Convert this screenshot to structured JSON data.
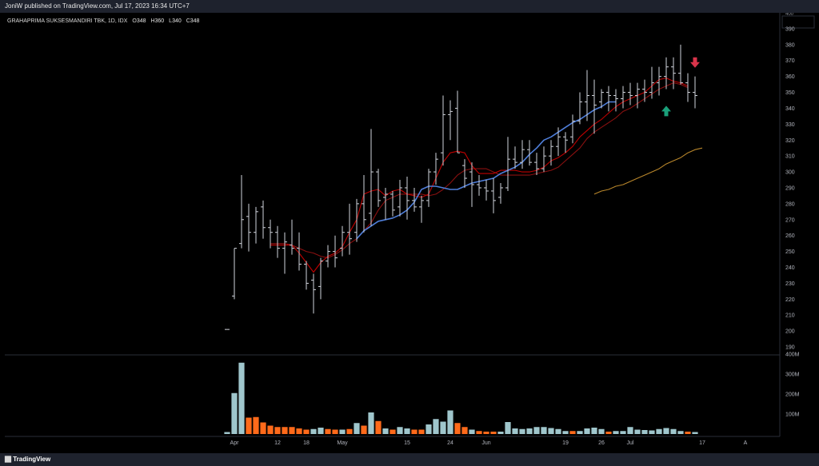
{
  "header": {
    "published": "JoniW published on TradingView.com, Jul 17, 2023 16:34 UTC+7",
    "legend": "GRAHAPRIMA SUKSESMANDIRI TBK, 1D, IDX",
    "o_label": "O",
    "o_value": "348",
    "h_label": "H",
    "h_value": "360",
    "l_label": "L",
    "l_value": "340",
    "c_label": "C",
    "c_value": "348"
  },
  "footer": {
    "brand": "TradingView"
  },
  "colors": {
    "background": "#000000",
    "bar": "#d1d4dc",
    "ma_fast": "#c00000",
    "ma_mid": "#8b1010",
    "ma_blue": "#4f7ed9",
    "ma_slow": "#b8862b",
    "vol_up": "#9fc6cc",
    "vol_down": "#ff6a1a",
    "arrow_up": "#1aa07a",
    "arrow_down": "#d9344a"
  },
  "chart_data": {
    "type": "ohlc",
    "price_axis": {
      "ticks": [
        190,
        200,
        210,
        220,
        230,
        240,
        250,
        260,
        270,
        280,
        290,
        300,
        310,
        320,
        330,
        340,
        350,
        360,
        370,
        380,
        390
      ],
      "top_label": "400",
      "ylim": [
        185,
        400
      ]
    },
    "volume_axis": {
      "ticks": [
        100,
        200,
        300,
        400
      ],
      "unit": "M",
      "ylim": [
        0,
        400
      ]
    },
    "x_ticks": [
      {
        "label": "Apr",
        "i": 1
      },
      {
        "label": "12",
        "i": 7
      },
      {
        "label": "18",
        "i": 11
      },
      {
        "label": "May",
        "i": 16
      },
      {
        "label": "15",
        "i": 25
      },
      {
        "label": "24",
        "i": 31
      },
      {
        "label": "Jun",
        "i": 36
      },
      {
        "label": "19",
        "i": 47
      },
      {
        "label": "26",
        "i": 52
      },
      {
        "label": "Jul",
        "i": 56
      },
      {
        "label": "17",
        "i": 66
      },
      {
        "label": "A",
        "i": 72
      }
    ],
    "bars": [
      {
        "o": 201,
        "h": 201,
        "l": 201,
        "c": 201,
        "v": 10,
        "dir": "up"
      },
      {
        "o": 222,
        "h": 252,
        "l": 220,
        "c": 252,
        "v": 205,
        "dir": "up"
      },
      {
        "o": 255,
        "h": 298,
        "l": 252,
        "c": 270,
        "v": 357,
        "dir": "up"
      },
      {
        "o": 272,
        "h": 280,
        "l": 250,
        "c": 262,
        "v": 82,
        "dir": "down"
      },
      {
        "o": 262,
        "h": 278,
        "l": 255,
        "c": 275,
        "v": 85,
        "dir": "down"
      },
      {
        "o": 278,
        "h": 282,
        "l": 258,
        "c": 265,
        "v": 58,
        "dir": "down"
      },
      {
        "o": 265,
        "h": 270,
        "l": 252,
        "c": 262,
        "v": 42,
        "dir": "down"
      },
      {
        "o": 262,
        "h": 266,
        "l": 246,
        "c": 252,
        "v": 35,
        "dir": "down"
      },
      {
        "o": 252,
        "h": 262,
        "l": 236,
        "c": 256,
        "v": 35,
        "dir": "down"
      },
      {
        "o": 254,
        "h": 270,
        "l": 248,
        "c": 252,
        "v": 35,
        "dir": "down"
      },
      {
        "o": 252,
        "h": 262,
        "l": 238,
        "c": 242,
        "v": 28,
        "dir": "down"
      },
      {
        "o": 242,
        "h": 244,
        "l": 226,
        "c": 230,
        "v": 22,
        "dir": "down"
      },
      {
        "o": 232,
        "h": 236,
        "l": 211,
        "c": 226,
        "v": 25,
        "dir": "up"
      },
      {
        "o": 228,
        "h": 246,
        "l": 220,
        "c": 244,
        "v": 32,
        "dir": "up"
      },
      {
        "o": 244,
        "h": 254,
        "l": 240,
        "c": 250,
        "v": 25,
        "dir": "down"
      },
      {
        "o": 250,
        "h": 260,
        "l": 240,
        "c": 246,
        "v": 22,
        "dir": "down"
      },
      {
        "o": 252,
        "h": 266,
        "l": 247,
        "c": 262,
        "v": 22,
        "dir": "up"
      },
      {
        "o": 262,
        "h": 280,
        "l": 248,
        "c": 258,
        "v": 25,
        "dir": "down"
      },
      {
        "o": 262,
        "h": 283,
        "l": 256,
        "c": 280,
        "v": 55,
        "dir": "up"
      },
      {
        "o": 280,
        "h": 298,
        "l": 262,
        "c": 270,
        "v": 42,
        "dir": "down"
      },
      {
        "o": 274,
        "h": 327,
        "l": 266,
        "c": 300,
        "v": 108,
        "dir": "up"
      },
      {
        "o": 300,
        "h": 302,
        "l": 278,
        "c": 282,
        "v": 65,
        "dir": "down"
      },
      {
        "o": 284,
        "h": 290,
        "l": 270,
        "c": 286,
        "v": 28,
        "dir": "up"
      },
      {
        "o": 286,
        "h": 288,
        "l": 272,
        "c": 276,
        "v": 22,
        "dir": "down"
      },
      {
        "o": 278,
        "h": 295,
        "l": 272,
        "c": 290,
        "v": 35,
        "dir": "up"
      },
      {
        "o": 290,
        "h": 297,
        "l": 270,
        "c": 282,
        "v": 28,
        "dir": "up"
      },
      {
        "o": 282,
        "h": 290,
        "l": 275,
        "c": 278,
        "v": 22,
        "dir": "down"
      },
      {
        "o": 278,
        "h": 285,
        "l": 268,
        "c": 282,
        "v": 22,
        "dir": "down"
      },
      {
        "o": 282,
        "h": 302,
        "l": 278,
        "c": 300,
        "v": 48,
        "dir": "up"
      },
      {
        "o": 300,
        "h": 312,
        "l": 292,
        "c": 308,
        "v": 75,
        "dir": "up"
      },
      {
        "o": 312,
        "h": 348,
        "l": 304,
        "c": 336,
        "v": 62,
        "dir": "up"
      },
      {
        "o": 336,
        "h": 345,
        "l": 320,
        "c": 338,
        "v": 118,
        "dir": "up"
      },
      {
        "o": 340,
        "h": 351,
        "l": 312,
        "c": 312,
        "v": 55,
        "dir": "down"
      },
      {
        "o": 304,
        "h": 308,
        "l": 290,
        "c": 296,
        "v": 35,
        "dir": "down"
      },
      {
        "o": 300,
        "h": 306,
        "l": 278,
        "c": 292,
        "v": 22,
        "dir": "up"
      },
      {
        "o": 292,
        "h": 298,
        "l": 285,
        "c": 290,
        "v": 15,
        "dir": "down"
      },
      {
        "o": 290,
        "h": 295,
        "l": 282,
        "c": 288,
        "v": 12,
        "dir": "down"
      },
      {
        "o": 288,
        "h": 296,
        "l": 274,
        "c": 282,
        "v": 12,
        "dir": "down"
      },
      {
        "o": 284,
        "h": 293,
        "l": 280,
        "c": 290,
        "v": 12,
        "dir": "up"
      },
      {
        "o": 290,
        "h": 322,
        "l": 288,
        "c": 308,
        "v": 60,
        "dir": "up"
      },
      {
        "o": 308,
        "h": 316,
        "l": 302,
        "c": 306,
        "v": 28,
        "dir": "up"
      },
      {
        "o": 306,
        "h": 320,
        "l": 302,
        "c": 314,
        "v": 25,
        "dir": "up"
      },
      {
        "o": 314,
        "h": 320,
        "l": 304,
        "c": 306,
        "v": 28,
        "dir": "up"
      },
      {
        "o": 306,
        "h": 312,
        "l": 298,
        "c": 302,
        "v": 35,
        "dir": "up"
      },
      {
        "o": 302,
        "h": 316,
        "l": 300,
        "c": 310,
        "v": 35,
        "dir": "up"
      },
      {
        "o": 310,
        "h": 320,
        "l": 304,
        "c": 316,
        "v": 30,
        "dir": "up"
      },
      {
        "o": 316,
        "h": 328,
        "l": 310,
        "c": 322,
        "v": 25,
        "dir": "up"
      },
      {
        "o": 322,
        "h": 325,
        "l": 312,
        "c": 320,
        "v": 15,
        "dir": "up"
      },
      {
        "o": 322,
        "h": 336,
        "l": 318,
        "c": 332,
        "v": 15,
        "dir": "down"
      },
      {
        "o": 332,
        "h": 350,
        "l": 330,
        "c": 344,
        "v": 15,
        "dir": "up"
      },
      {
        "o": 344,
        "h": 364,
        "l": 332,
        "c": 348,
        "v": 28,
        "dir": "up"
      },
      {
        "o": 348,
        "h": 358,
        "l": 324,
        "c": 342,
        "v": 32,
        "dir": "up"
      },
      {
        "o": 344,
        "h": 352,
        "l": 340,
        "c": 350,
        "v": 25,
        "dir": "up"
      },
      {
        "o": 350,
        "h": 354,
        "l": 338,
        "c": 348,
        "v": 12,
        "dir": "down"
      },
      {
        "o": 348,
        "h": 352,
        "l": 338,
        "c": 346,
        "v": 15,
        "dir": "up"
      },
      {
        "o": 346,
        "h": 354,
        "l": 340,
        "c": 350,
        "v": 15,
        "dir": "up"
      },
      {
        "o": 350,
        "h": 356,
        "l": 342,
        "c": 348,
        "v": 35,
        "dir": "up"
      },
      {
        "o": 348,
        "h": 356,
        "l": 340,
        "c": 352,
        "v": 22,
        "dir": "up"
      },
      {
        "o": 352,
        "h": 358,
        "l": 344,
        "c": 350,
        "v": 20,
        "dir": "up"
      },
      {
        "o": 350,
        "h": 366,
        "l": 346,
        "c": 356,
        "v": 18,
        "dir": "up"
      },
      {
        "o": 356,
        "h": 366,
        "l": 348,
        "c": 360,
        "v": 25,
        "dir": "up"
      },
      {
        "o": 360,
        "h": 372,
        "l": 352,
        "c": 366,
        "v": 30,
        "dir": "up"
      },
      {
        "o": 366,
        "h": 372,
        "l": 352,
        "c": 362,
        "v": 25,
        "dir": "up"
      },
      {
        "o": 362,
        "h": 380,
        "l": 355,
        "c": 356,
        "v": 15,
        "dir": "up"
      },
      {
        "o": 356,
        "h": 362,
        "l": 344,
        "c": 350,
        "v": 12,
        "dir": "down"
      },
      {
        "o": 350,
        "h": 360,
        "l": 340,
        "c": 348,
        "v": 10,
        "dir": "up"
      }
    ],
    "ma_fast": {
      "start": 6,
      "values": [
        254,
        254,
        254,
        254,
        249,
        243,
        237,
        243,
        247,
        249,
        253,
        262,
        270,
        286,
        288,
        289,
        285,
        288,
        289,
        286,
        285,
        284,
        286,
        296,
        306,
        312,
        313,
        312,
        304,
        299,
        299,
        299,
        301,
        301,
        301,
        300,
        300,
        301,
        303,
        307,
        309,
        312,
        316,
        322,
        326,
        330,
        333,
        337,
        341,
        344,
        346,
        348,
        350,
        354,
        358,
        359,
        357,
        356,
        354
      ]
    },
    "ma_mid": {
      "start": 6,
      "values": [
        255,
        255,
        255,
        254,
        252,
        250,
        249,
        247,
        246,
        248,
        251,
        255,
        258,
        263,
        268,
        276,
        282,
        284,
        286,
        286,
        286,
        286,
        285,
        286,
        289,
        293,
        298,
        301,
        302,
        302,
        302,
        300,
        298,
        298,
        298,
        298,
        298,
        299,
        300,
        301,
        303,
        307,
        311,
        315,
        321,
        325,
        328,
        331,
        334,
        338,
        340,
        343,
        346,
        349,
        352,
        354,
        356,
        355,
        353
      ]
    },
    "ma_blue": {
      "start": 18,
      "values": [
        258,
        263,
        266,
        269,
        270,
        271,
        273,
        276,
        281,
        289,
        291,
        291,
        290,
        289,
        289,
        291,
        293,
        294,
        295,
        296,
        299,
        301,
        303,
        306,
        311,
        315,
        320,
        322,
        325,
        328,
        331,
        333,
        336,
        339,
        341,
        344,
        344
      ]
    },
    "ma_slow": {
      "start": 51,
      "values": [
        286,
        288,
        289,
        291,
        292,
        294,
        296,
        298,
        300,
        302,
        305,
        307,
        309,
        312,
        314,
        315
      ]
    },
    "arrows": [
      {
        "type": "up",
        "i": 61,
        "price": 338
      },
      {
        "type": "down",
        "i": 65,
        "price": 369
      }
    ]
  }
}
